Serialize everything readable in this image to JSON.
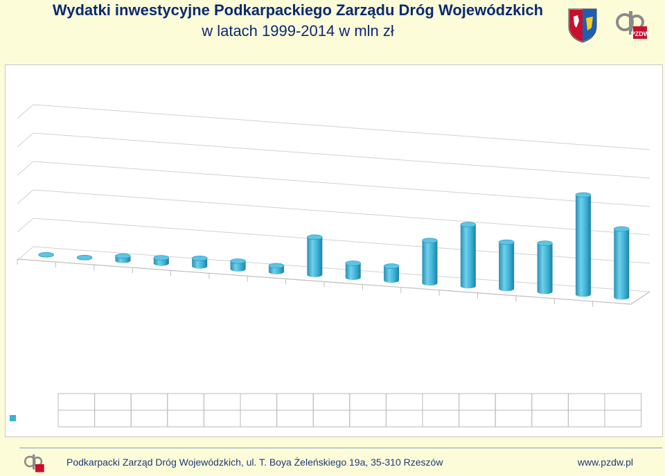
{
  "header": {
    "title_line1": "Wydatki inwestycyjne Podkarpackiego Zarządu Dróg Wojewódzkich",
    "title_line2": "w latach 1999-2014 w mln zł"
  },
  "logos": {
    "crest_icon": "coat-of-arms-icon",
    "pzdw_icon": "pzdw-logo-icon"
  },
  "footer": {
    "address": "Podkarpacki Zarząd Dróg Wojewódzkich,  ul. T. Boya Żeleńskiego 19a, 35-310 Rzeszów",
    "url": "www.pzdw.pl"
  },
  "colors": {
    "background": "#fcfcd8",
    "title": "#0b2a70",
    "bar": "#3ab0d4"
  },
  "chart_data": {
    "type": "bar",
    "style": "3d-cylinder",
    "categories": [
      "",
      "",
      "",
      "",
      "",
      "",
      "",
      "",
      "",
      "",
      "",
      "",
      "",
      "",
      "",
      ""
    ],
    "series": [
      {
        "name": "",
        "values": [
          0.5,
          0.5,
          8,
          10,
          14,
          14,
          11,
          66,
          25,
          25,
          75,
          108,
          82,
          85,
          175,
          120
        ]
      }
    ],
    "ylim": [
      0,
      250
    ],
    "grid": true,
    "legend": "data-table-bottom"
  }
}
